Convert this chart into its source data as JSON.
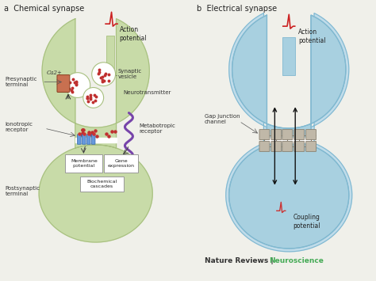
{
  "title_a": "a  Chemical synapse",
  "title_b": "b  Electrical synapse",
  "bg_color": "#f0f0ea",
  "green_light": "#c8dba8",
  "green_outline": "#a8c080",
  "blue_light": "#a8d0e0",
  "blue_outline": "#80b8d0",
  "blue_inner": "#c0dcea",
  "footer_bold": "Nature Reviews",
  "footer_green": "Neuroscience",
  "footer_color_1": "#333333",
  "footer_color_2": "#44aa55",
  "labels": {
    "Ca": "Ca2+",
    "presynaptic": "Presynaptic\nterminal",
    "synaptic_vesicle": "Synaptic\nvesicle",
    "neurotransmitter": "Neurotransmitter",
    "ionotropic": "Ionotropic\nreceptor",
    "metabotropic": "Metabotropic\nreceptor",
    "membrane_potential": "Membrane\npotential",
    "gene_expression": "Gene\nexpression",
    "biochemical": "Biochemical\ncascades",
    "postsynaptic": "Postsynaptic\nterminal",
    "action_potential_a": "Action\npotential",
    "action_potential_b": "Action\npotential",
    "gap_junction": "Gap junction\nchannel",
    "coupling": "Coupling\npotential"
  }
}
